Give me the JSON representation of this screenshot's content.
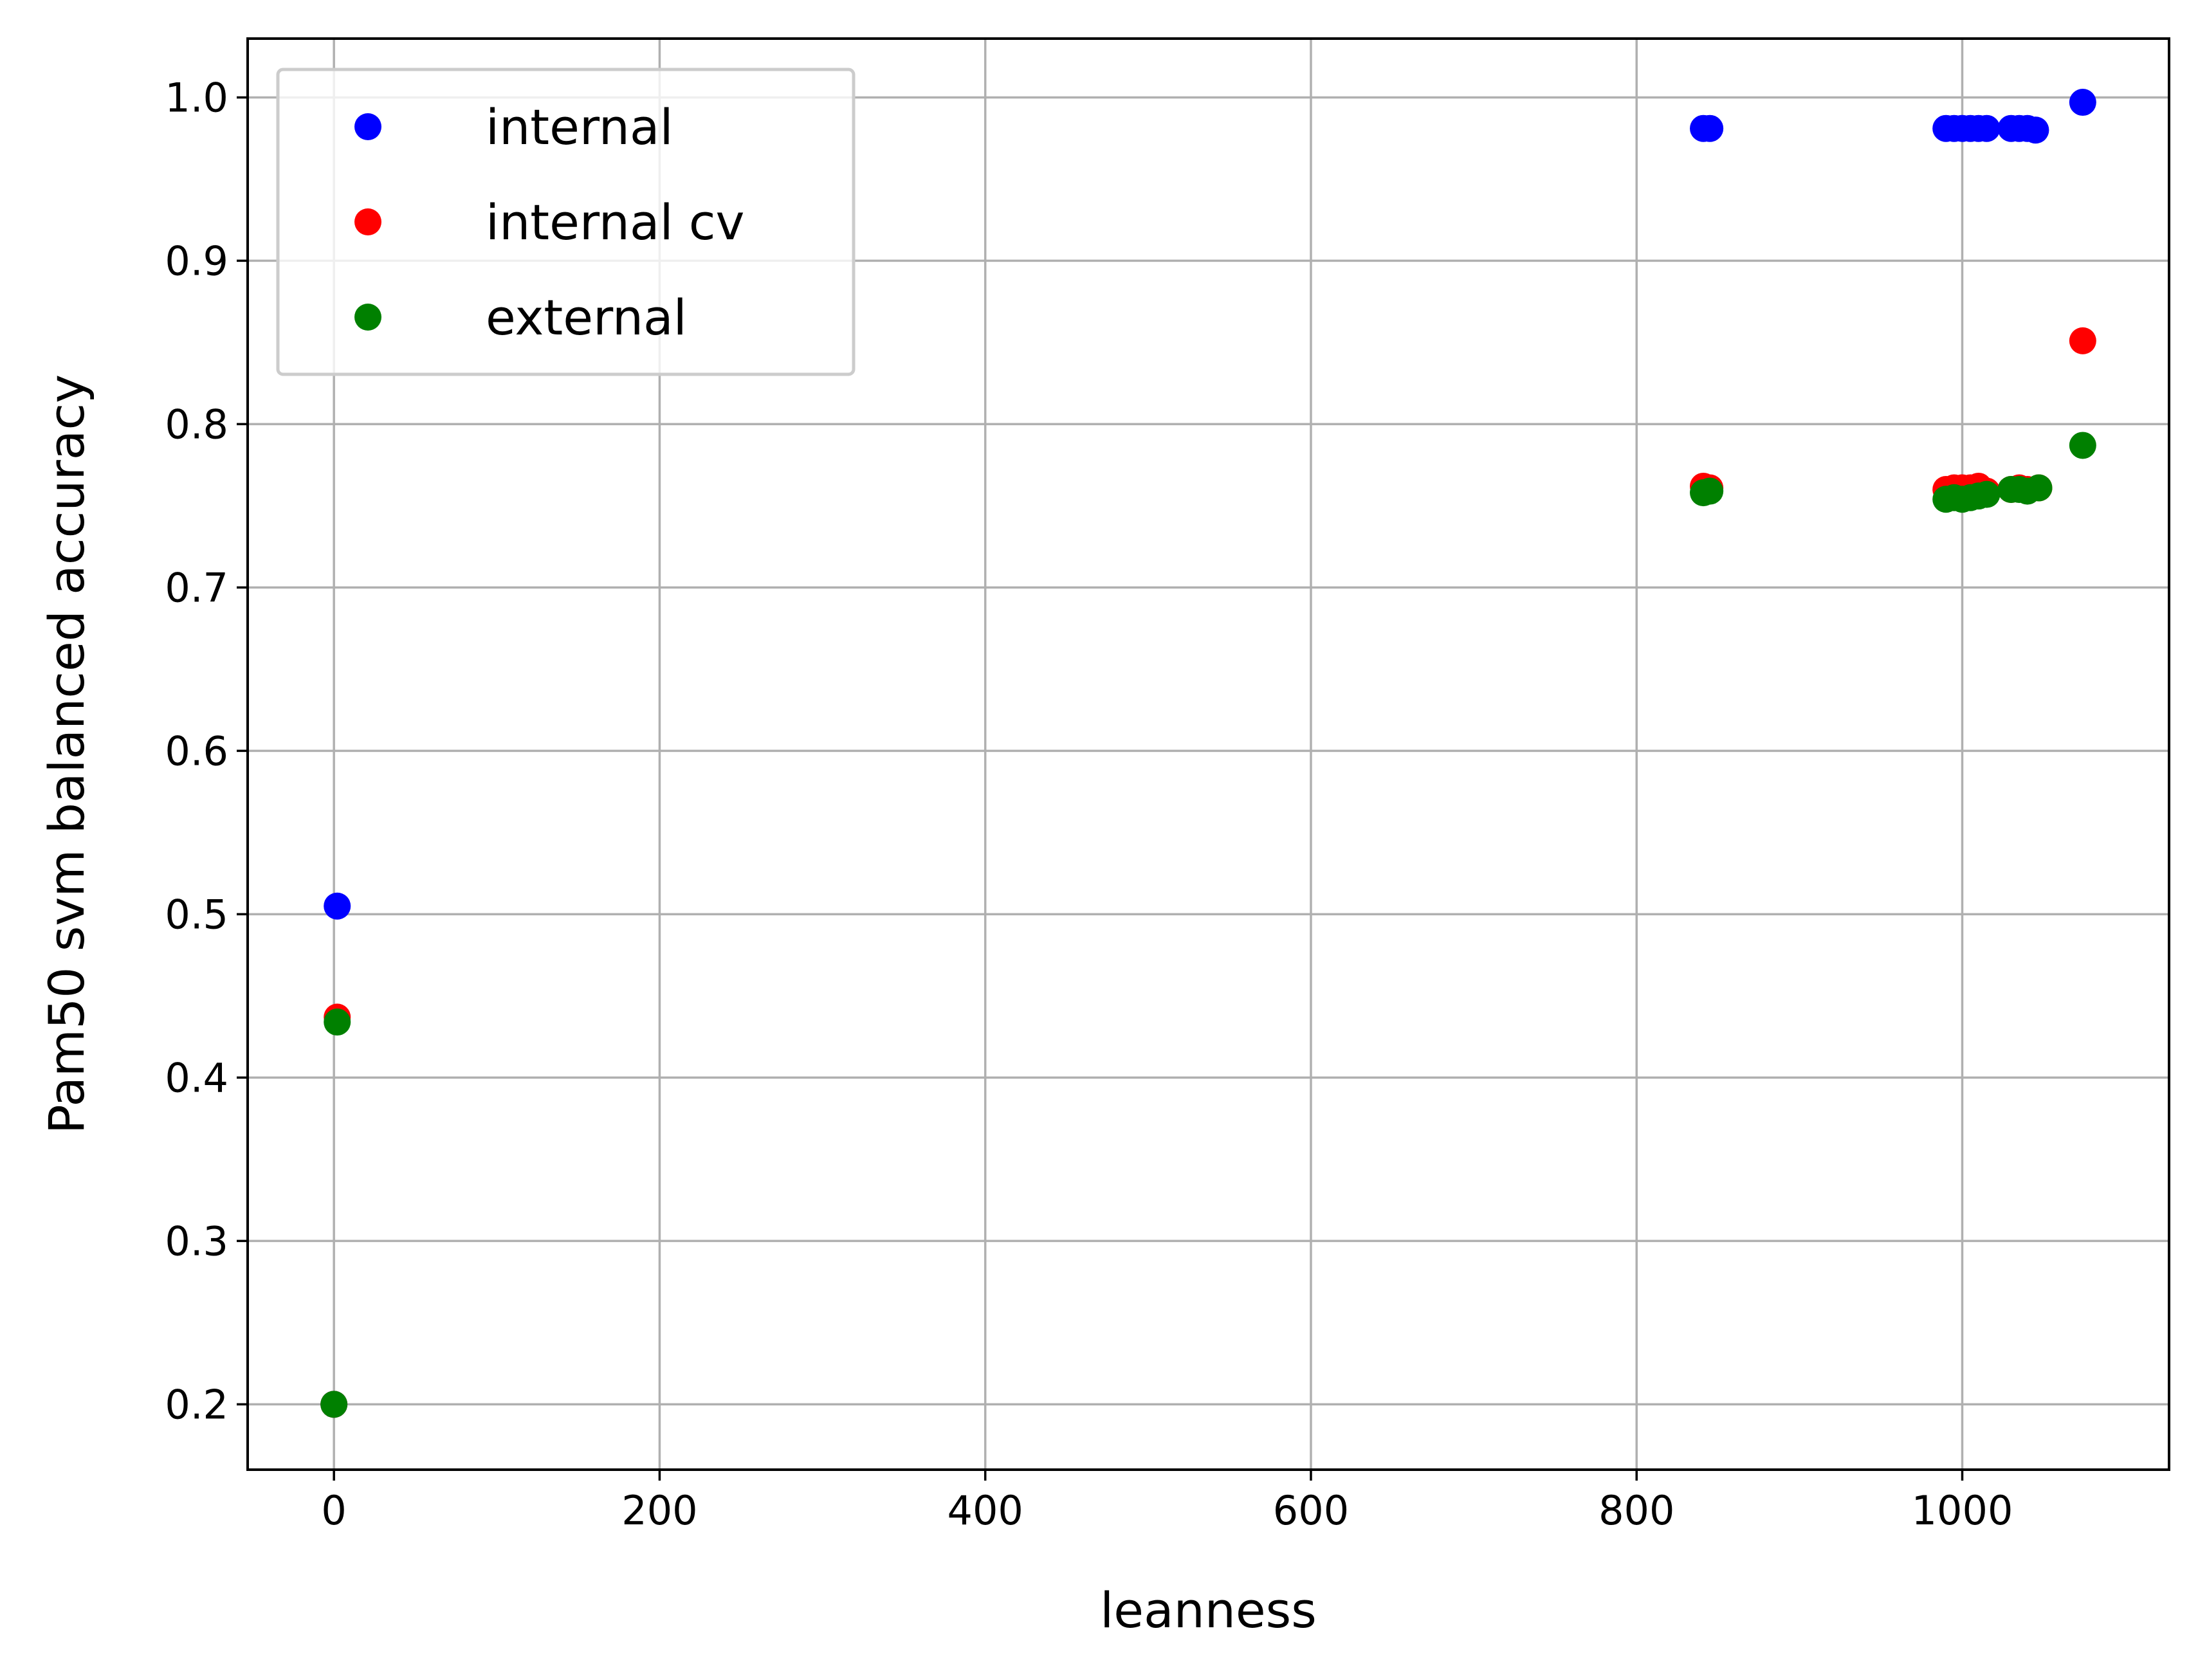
{
  "chart_data": {
    "type": "scatter",
    "title": "",
    "xlabel": "leanness",
    "ylabel": "Pam50 svm balanced accuracy",
    "xlim": [
      -53,
      1127
    ],
    "ylim": [
      0.16,
      1.036
    ],
    "xticks": [
      0,
      200,
      400,
      600,
      800,
      1000
    ],
    "xtick_labels": [
      "0",
      "200",
      "400",
      "600",
      "800",
      "1000"
    ],
    "yticks": [
      0.2,
      0.3,
      0.4,
      0.5,
      0.6,
      0.7,
      0.8,
      0.9,
      1.0
    ],
    "ytick_labels": [
      "0.2",
      "0.3",
      "0.4",
      "0.5",
      "0.6",
      "0.7",
      "0.8",
      "0.9",
      "1.0"
    ],
    "grid": true,
    "legend_position": "top-left",
    "series": [
      {
        "name": "internal",
        "color": "#0000ff",
        "points": [
          [
            0,
            0.2
          ],
          [
            2,
            0.505
          ],
          [
            841,
            0.981
          ],
          [
            845,
            0.981
          ],
          [
            990,
            0.981
          ],
          [
            995,
            0.981
          ],
          [
            1000,
            0.981
          ],
          [
            1005,
            0.981
          ],
          [
            1010,
            0.981
          ],
          [
            1015,
            0.981
          ],
          [
            1030,
            0.981
          ],
          [
            1035,
            0.981
          ],
          [
            1040,
            0.981
          ],
          [
            1045,
            0.98
          ],
          [
            1074,
            0.997
          ]
        ]
      },
      {
        "name": "internal cv",
        "color": "#ff0000",
        "points": [
          [
            0,
            0.2
          ],
          [
            2,
            0.437
          ],
          [
            841,
            0.762
          ],
          [
            845,
            0.761
          ],
          [
            990,
            0.76
          ],
          [
            995,
            0.761
          ],
          [
            1000,
            0.761
          ],
          [
            1005,
            0.761
          ],
          [
            1010,
            0.762
          ],
          [
            1015,
            0.759
          ],
          [
            1030,
            0.76
          ],
          [
            1035,
            0.761
          ],
          [
            1040,
            0.76
          ],
          [
            1047,
            0.761
          ],
          [
            1074,
            0.851
          ]
        ]
      },
      {
        "name": "external",
        "color": "#008000",
        "points": [
          [
            0,
            0.2
          ],
          [
            2,
            0.434
          ],
          [
            841,
            0.758
          ],
          [
            845,
            0.759
          ],
          [
            990,
            0.754
          ],
          [
            995,
            0.755
          ],
          [
            1000,
            0.754
          ],
          [
            1005,
            0.755
          ],
          [
            1010,
            0.756
          ],
          [
            1015,
            0.757
          ],
          [
            1030,
            0.76
          ],
          [
            1035,
            0.76
          ],
          [
            1040,
            0.759
          ],
          [
            1047,
            0.761
          ],
          [
            1074,
            0.787
          ]
        ]
      }
    ]
  }
}
